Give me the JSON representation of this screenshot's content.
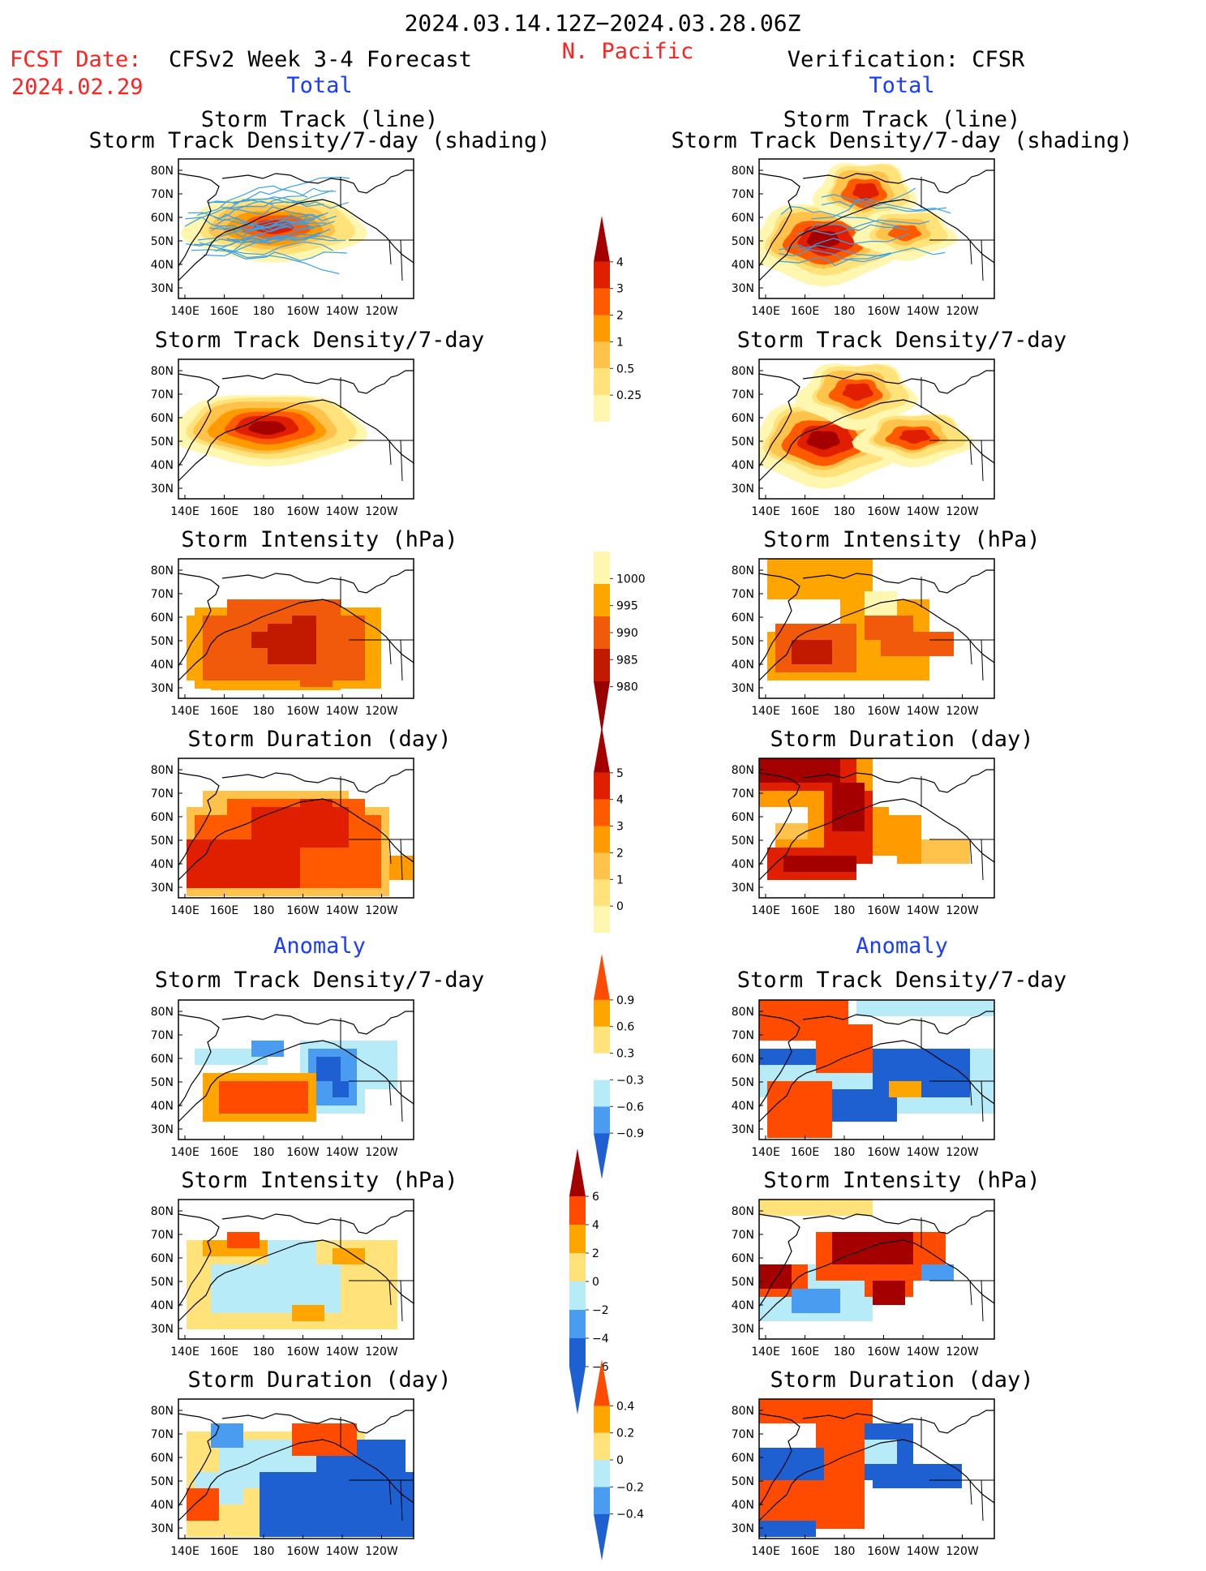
{
  "header": {
    "date_range": "2024.03.14.12Z−2024.03.28.06Z",
    "fcst_label": "FCST Date:",
    "fcst_date": "2024.02.29",
    "model_title": "CFSv2 Week 3-4 Forecast",
    "region": "N. Pacific",
    "verification_title": "Verification: CFSR"
  },
  "section_labels": {
    "total": "Total",
    "anomaly": "Anomaly"
  },
  "map_axes": {
    "lon_ticks": [
      "140E",
      "160E",
      "180",
      "160W",
      "140W",
      "120W"
    ],
    "lat_ticks": [
      "80N",
      "70N",
      "60N",
      "50N",
      "40N",
      "30N"
    ]
  },
  "panel_titles": {
    "track_line": "Storm Track (line)",
    "track_shading": "Storm Track Density/7-day (shading)",
    "density": "Storm Track Density/7-day",
    "intensity": "Storm Intensity (hPa)",
    "duration": "Storm Duration (day)"
  },
  "colorbars": {
    "density": [
      "4",
      "3",
      "2",
      "1",
      "0.5",
      "0.25"
    ],
    "intensity": [
      "1000",
      "995",
      "990",
      "985",
      "980"
    ],
    "duration": [
      "5",
      "4",
      "3",
      "2",
      "1",
      "0"
    ],
    "anom_density": [
      "0.9",
      "0.6",
      "0.3",
      "−0.3",
      "−0.6",
      "−0.9"
    ],
    "anom_intensity": [
      "6",
      "4",
      "2",
      "0",
      "−2",
      "−4",
      "−6"
    ],
    "anom_duration": [
      "0.4",
      "0.2",
      "0",
      "−0.2",
      "−0.4"
    ]
  },
  "colors": {
    "warm": [
      "#fff6b0",
      "#ffe27a",
      "#ffc24a",
      "#ff9a00",
      "#ff5a00",
      "#e01e00",
      "#a40000"
    ],
    "intensity": [
      "#fff6b0",
      "#ffa500",
      "#f05a0a",
      "#c21a00",
      "#9a0000"
    ],
    "anom": [
      "#1e5fd2",
      "#4a9cf0",
      "#b7ebf8",
      "#ffffff",
      "#ffe27a",
      "#ffa500",
      "#ff4b00",
      "#a50000"
    ],
    "track_line": "#3aa0e8"
  }
}
